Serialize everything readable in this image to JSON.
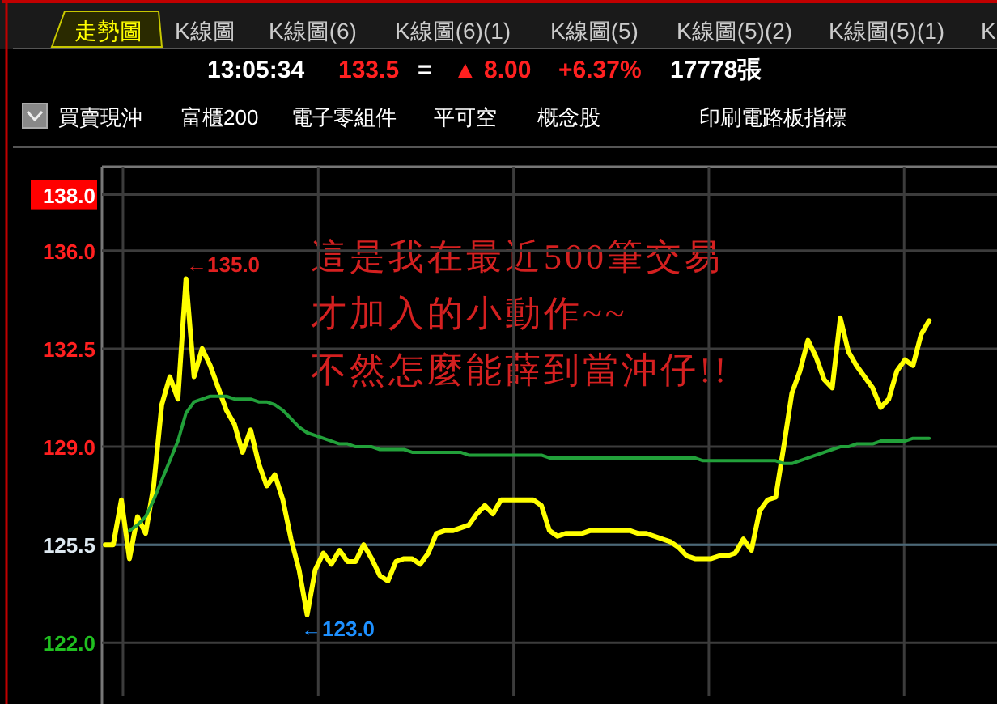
{
  "chart_data": {
    "type": "line",
    "title": "走勢圖",
    "categories": [
      null,
      null,
      null,
      null,
      null,
      null,
      null,
      null,
      null,
      null,
      null,
      null,
      null,
      null,
      null,
      null,
      null,
      null,
      null,
      null,
      null,
      null,
      null,
      null,
      null,
      null,
      null,
      null,
      null,
      null,
      null,
      null,
      null,
      null,
      null,
      null,
      null,
      null,
      null,
      null,
      null,
      null,
      null,
      null,
      null,
      null,
      null,
      null,
      null,
      null,
      null,
      null,
      null,
      null,
      null,
      null,
      null,
      null,
      null,
      null,
      null,
      null,
      null,
      null,
      null,
      null,
      null,
      null,
      null,
      null,
      null,
      null,
      null,
      null,
      null,
      null,
      null,
      null,
      null,
      null,
      null,
      null,
      null,
      null,
      null,
      null,
      null,
      null,
      null,
      null,
      null,
      null,
      null,
      null,
      null,
      null,
      null,
      null,
      null,
      null,
      null,
      null,
      null,
      null,
      null,
      null,
      null,
      null,
      null,
      null,
      null
    ],
    "series": [
      {
        "color": "#ffff00",
        "values": [
          125.5,
          125.5,
          127.1,
          125.0,
          126.5,
          125.9,
          127.6,
          130.5,
          131.5,
          130.7,
          135.0,
          131.5,
          132.5,
          131.9,
          131.1,
          130.3,
          129.8,
          128.8,
          129.6,
          128.4,
          127.6,
          128.0,
          127.1,
          125.7,
          124.6,
          123.0,
          124.6,
          125.2,
          124.8,
          125.3,
          124.9,
          124.9,
          125.5,
          125.0,
          124.4,
          124.2,
          124.9,
          125.0,
          125.0,
          124.8,
          125.2,
          125.9,
          126.0,
          126.0,
          126.1,
          126.2,
          126.6,
          126.9,
          126.6,
          127.1,
          127.1,
          127.1,
          127.1,
          127.1,
          126.9,
          126.0,
          125.8,
          125.9,
          125.9,
          125.9,
          126.0,
          126.0,
          126.0,
          126.0,
          126.0,
          126.0,
          125.9,
          125.9,
          125.8,
          125.7,
          125.6,
          125.4,
          125.1,
          125.0,
          125.0,
          125.0,
          125.1,
          125.1,
          125.2,
          125.7,
          125.3,
          126.7,
          127.1,
          127.2,
          129.0,
          130.9,
          131.7,
          132.8,
          132.2,
          131.4,
          131.1,
          133.6,
          132.4,
          131.9,
          131.5,
          131.1,
          130.4,
          130.7,
          131.7,
          132.1,
          131.9,
          133.0,
          133.5,
          null,
          null,
          null,
          null,
          null,
          null,
          null,
          null
        ]
      },
      {
        "color": "#22a03a",
        "values": [
          null,
          null,
          null,
          126.0,
          126.2,
          126.5,
          127.1,
          127.8,
          128.5,
          129.2,
          130.2,
          130.6,
          130.7,
          130.8,
          130.8,
          130.8,
          130.7,
          130.7,
          130.7,
          130.6,
          130.6,
          130.5,
          130.3,
          130.0,
          129.7,
          129.5,
          129.4,
          129.3,
          129.2,
          129.1,
          129.1,
          129.0,
          129.0,
          129.0,
          128.9,
          128.9,
          128.9,
          128.9,
          128.8,
          128.8,
          128.8,
          128.8,
          128.8,
          128.8,
          128.8,
          128.7,
          128.7,
          128.7,
          128.7,
          128.7,
          128.7,
          128.7,
          128.7,
          128.7,
          128.7,
          128.6,
          128.6,
          128.6,
          128.6,
          128.6,
          128.6,
          128.6,
          128.6,
          128.6,
          128.6,
          128.6,
          128.6,
          128.6,
          128.6,
          128.6,
          128.6,
          128.6,
          128.6,
          128.6,
          128.5,
          128.5,
          128.5,
          128.5,
          128.5,
          128.5,
          128.5,
          128.5,
          128.5,
          128.5,
          128.4,
          128.4,
          128.5,
          128.6,
          128.7,
          128.8,
          128.9,
          129.0,
          129.0,
          129.1,
          129.1,
          129.1,
          129.2,
          129.2,
          129.2,
          129.2,
          129.3,
          129.3,
          129.3,
          null,
          null,
          null,
          null,
          null,
          null,
          null,
          null
        ]
      }
    ],
    "ylim": [
      120.1,
      139.0
    ],
    "yticks": [
      {
        "value": 122,
        "label": "122.0"
      },
      125.5,
      {
        "value": 129,
        "label": "129.0"
      },
      132.5,
      {
        "value": 136,
        "label": "136.0"
      },
      {
        "value": 138,
        "label": "138.0"
      }
    ],
    "grid": true,
    "ref_lines": [
      {
        "axis": "y",
        "value": 125.5,
        "color": "#4a6878"
      }
    ],
    "annotations": [
      "K線圖",
      "K線圖(6)",
      "K線圖(6)(1)",
      "K線圖(5)",
      "K線圖(5)(2)",
      "K線圖(5)(1)",
      "K",
      "13:05:34",
      "133.5",
      "=",
      "▲ 8.00",
      "+6.37%",
      "17778張",
      "買賣現沖",
      "富櫃200",
      "電子零組件",
      "平可空",
      "概念股",
      "印刷電路板指標",
      "這是我在最近500筆交易",
      "才加入的小動作~~",
      "不然怎麼能薛到當沖仔!!",
      "←135.0",
      "←123.0"
    ]
  }
}
